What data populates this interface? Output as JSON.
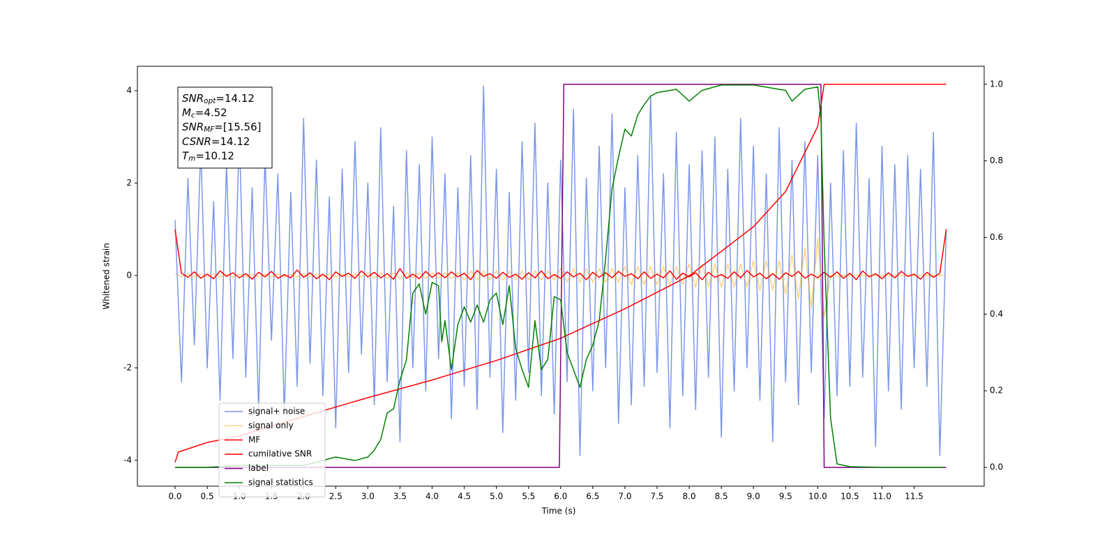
{
  "chart_data": {
    "type": "line",
    "xlabel": "Time (s)",
    "ylabel": "Whitened strain",
    "xlim": [
      -0.586,
      12.59
    ],
    "ylim": [
      -4.56,
      4.53
    ],
    "y2lim": [
      -0.049,
      1.047
    ],
    "xticks": [
      {
        "value": 0,
        "label": "0.0"
      },
      0.5,
      {
        "value": 1,
        "label": "1.0"
      },
      1.5,
      {
        "value": 2,
        "label": "2.0"
      },
      2.5,
      {
        "value": 3,
        "label": "3.0"
      },
      3.5,
      {
        "value": 4,
        "label": "4.0"
      },
      4.5,
      {
        "value": 5,
        "label": "5.0"
      },
      5.5,
      {
        "value": 6,
        "label": "6.0"
      },
      6.5,
      {
        "value": 7,
        "label": "7.0"
      },
      7.5,
      {
        "value": 8,
        "label": "8.0"
      },
      8.5,
      {
        "value": 9,
        "label": "9.0"
      },
      9.5,
      {
        "value": 10,
        "label": "10.0"
      },
      10.5,
      {
        "value": 11,
        "label": "11.0"
      },
      11.5
    ],
    "yticks": [
      -4,
      -2,
      0,
      2,
      4
    ],
    "y2ticks": [
      {
        "value": 0,
        "label": "0.0"
      },
      0.2,
      0.4,
      0.6,
      0.8,
      {
        "value": 1,
        "label": "1.0"
      }
    ],
    "grid": false,
    "legend": "lower left",
    "annotations": [
      {
        "name": "SNR",
        "subscript": "opt",
        "text": "=14.12"
      },
      {
        "name": "M",
        "subscript": "c",
        "text": "=4.52"
      },
      {
        "name": "SNR",
        "subscript": "MF",
        "text": "=[15.56]"
      },
      {
        "name": "CSNR",
        "text": "=14.12"
      },
      {
        "name": "T",
        "subscript": "m",
        "text": "=10.12"
      }
    ],
    "x": [
      0,
      0.1,
      0.2,
      0.3,
      0.4,
      0.5,
      0.6,
      0.7,
      0.8,
      0.9,
      1,
      1.1,
      1.2,
      1.3,
      1.4,
      1.5,
      1.6,
      1.7,
      1.8,
      1.9,
      2,
      2.1,
      2.2,
      2.3,
      2.4,
      2.5,
      2.6,
      2.7,
      2.8,
      2.9,
      3,
      3.1,
      3.2,
      3.3,
      3.4,
      3.5,
      3.6,
      3.7,
      3.8,
      3.9,
      4,
      4.1,
      4.2,
      4.3,
      4.4,
      4.5,
      4.6,
      4.7,
      4.8,
      4.9,
      5,
      5.1,
      5.2,
      5.3,
      5.4,
      5.5,
      5.6,
      5.7,
      5.8,
      5.9,
      6,
      6.1,
      6.2,
      6.3,
      6.4,
      6.5,
      6.6,
      6.7,
      6.8,
      6.9,
      7,
      7.1,
      7.2,
      7.3,
      7.4,
      7.5,
      7.6,
      7.7,
      7.8,
      7.9,
      8,
      8.1,
      8.2,
      8.3,
      8.4,
      8.5,
      8.6,
      8.7,
      8.8,
      8.9,
      9,
      9.1,
      9.2,
      9.3,
      9.4,
      9.5,
      9.6,
      9.7,
      9.8,
      9.9,
      10,
      10.1,
      10.2,
      10.3,
      10.4,
      10.5,
      10.6,
      10.7,
      10.8,
      10.9,
      11,
      11.1,
      11.2,
      11.3,
      11.4,
      11.5,
      11.6,
      11.7,
      11.8,
      11.9,
      12
    ],
    "series": [
      {
        "name": "signal+ noise",
        "color": "royalblue",
        "opacity": 0.7,
        "values": [
          1.2,
          -2.3,
          2.1,
          -1.5,
          2.8,
          -2.0,
          1.6,
          -2.7,
          2.4,
          -1.8,
          3.1,
          -2.2,
          1.9,
          -2.9,
          2.6,
          -1.4,
          2.2,
          -3.0,
          1.8,
          -2.4,
          3.4,
          -1.9,
          2.5,
          -2.6,
          1.7,
          -3.3,
          2.3,
          -2.1,
          2.9,
          -1.7,
          2.0,
          -2.8,
          3.2,
          -2.3,
          1.5,
          -3.6,
          2.7,
          -2.0,
          2.4,
          -2.5,
          3.0,
          -1.8,
          2.2,
          -3.1,
          1.9,
          -2.4,
          2.6,
          -2.9,
          4.1,
          -2.2,
          2.3,
          -3.4,
          1.8,
          -2.7,
          2.9,
          -2.1,
          3.3,
          -2.6,
          2.0,
          -3.0,
          2.5,
          -2.3,
          3.6,
          -3.9,
          2.1,
          -2.5,
          2.8,
          -2.0,
          3.5,
          -3.2,
          1.9,
          -2.8,
          2.6,
          -2.4,
          3.9,
          -2.1,
          2.2,
          -3.3,
          3.1,
          -2.6,
          2.4,
          -2.9,
          2.7,
          -2.2,
          3.0,
          -3.5,
          2.3,
          -2.5,
          3.4,
          -2.0,
          2.8,
          -2.7,
          2.2,
          -3.6,
          3.2,
          -2.3,
          2.5,
          -2.8,
          2.9,
          -2.1,
          2.6,
          -3.1,
          2.0,
          -2.6,
          2.7,
          -2.4,
          3.3,
          -2.2,
          2.1,
          -3.7,
          2.8,
          -2.5,
          2.4,
          -2.9,
          2.6,
          -2.0,
          2.3,
          -2.4,
          3.1,
          -3.9,
          1.0
        ]
      },
      {
        "name": "signal only",
        "color": "orange",
        "opacity": 0.5,
        "values": [
          0.03,
          -0.03,
          0.03,
          -0.03,
          0.03,
          -0.03,
          0.03,
          -0.03,
          0.03,
          -0.03,
          0.03,
          -0.03,
          0.03,
          -0.03,
          0.03,
          -0.03,
          0.03,
          -0.03,
          0.03,
          -0.03,
          0.03,
          -0.03,
          0.03,
          -0.03,
          0.03,
          -0.03,
          0.03,
          -0.03,
          0.03,
          -0.03,
          0.06,
          -0.06,
          0.06,
          -0.06,
          0.06,
          -0.06,
          0.06,
          -0.06,
          0.06,
          -0.06,
          0.06,
          -0.06,
          0.06,
          -0.06,
          0.06,
          -0.1,
          0.1,
          -0.1,
          0.1,
          -0.1,
          0.1,
          -0.1,
          0.1,
          -0.1,
          0.1,
          -0.1,
          0.1,
          -0.1,
          0.1,
          -0.1,
          0.15,
          -0.15,
          0.15,
          -0.15,
          0.15,
          -0.15,
          0.15,
          -0.15,
          0.15,
          -0.15,
          0.2,
          -0.2,
          0.2,
          -0.2,
          0.2,
          -0.2,
          0.2,
          -0.2,
          0.2,
          -0.2,
          0.25,
          -0.25,
          0.25,
          -0.25,
          0.25,
          -0.25,
          0.25,
          -0.25,
          0.25,
          -0.25,
          0.32,
          -0.32,
          0.32,
          -0.32,
          0.32,
          -0.4,
          0.45,
          -0.5,
          0.6,
          -0.7,
          0.8,
          -0.9,
          0,
          0,
          0,
          0,
          0,
          0,
          0,
          0,
          0,
          0,
          0,
          0,
          0,
          0,
          0,
          0,
          0,
          0,
          0
        ]
      },
      {
        "name": "MF",
        "color": "red",
        "opacity": 1,
        "values": [
          1.0,
          0.05,
          -0.04,
          0.08,
          -0.06,
          0.03,
          -0.07,
          0.1,
          -0.02,
          0.06,
          -0.05,
          0.04,
          -0.08,
          0.07,
          -0.03,
          0.09,
          -0.06,
          0.02,
          -0.05,
          0.12,
          -0.04,
          0.06,
          -0.07,
          0.03,
          -0.09,
          0.08,
          -0.02,
          0.05,
          -0.06,
          0.1,
          -0.03,
          0.07,
          -0.05,
          0.04,
          -0.08,
          0.15,
          -0.06,
          0.03,
          -0.07,
          0.09,
          -0.04,
          0.06,
          -0.05,
          0.08,
          -0.03,
          0.05,
          -0.09,
          0.11,
          -0.02,
          0.04,
          -0.06,
          0.07,
          -0.04,
          0.03,
          -0.08,
          0.06,
          -0.05,
          0.1,
          -0.07,
          0.02,
          -0.06,
          0.08,
          -0.03,
          0.05,
          -0.09,
          0.07,
          -0.04,
          0.06,
          -0.05,
          0.09,
          -0.02,
          0.04,
          -0.07,
          0.08,
          -0.06,
          0.03,
          -0.05,
          0.1,
          -0.08,
          0.05,
          -0.03,
          0.06,
          -0.09,
          0.07,
          -0.04,
          0.02,
          -0.06,
          0.08,
          -0.05,
          0.11,
          -0.03,
          0.05,
          -0.07,
          0.04,
          -0.08,
          0.06,
          -0.02,
          0.09,
          -0.06,
          0.03,
          -0.05,
          0.07,
          -0.04,
          0.08,
          -0.06,
          0.05,
          -0.09,
          0.1,
          -0.03,
          0.04,
          -0.07,
          0.06,
          -0.05,
          0.09,
          -0.02,
          0.03,
          -0.08,
          0.07,
          -0.04,
          0.05,
          1.0
        ]
      },
      {
        "name": "cumilative SNR",
        "color": "red",
        "opacity": 1,
        "axis": "y2",
        "x": [
          0,
          0.05,
          0.5,
          1,
          2,
          3,
          4,
          5,
          6,
          7,
          8,
          9,
          9.5,
          10,
          10.1,
          12
        ],
        "values": [
          0.013,
          0.04,
          0.065,
          0.082,
          0.133,
          0.182,
          0.228,
          0.279,
          0.337,
          0.414,
          0.5,
          0.628,
          0.72,
          0.89,
          1.0,
          1.0
        ]
      },
      {
        "name": "label",
        "color": "purple",
        "opacity": 1,
        "axis": "y2",
        "x": [
          0,
          5.98,
          6.05,
          10.05,
          10.1,
          12
        ],
        "values": [
          0,
          0,
          1,
          1,
          0,
          0
        ]
      },
      {
        "name": "signal statistics",
        "color": "green",
        "opacity": 1,
        "axis": "y2",
        "x": [
          0,
          0.5,
          1,
          2,
          2.5,
          2.8,
          3,
          3.1,
          3.2,
          3.3,
          3.4,
          3.5,
          3.6,
          3.7,
          3.8,
          3.9,
          4,
          4.1,
          4.15,
          4.2,
          4.3,
          4.4,
          4.5,
          4.6,
          4.7,
          4.8,
          4.9,
          5,
          5.1,
          5.2,
          5.3,
          5.4,
          5.5,
          5.6,
          5.7,
          5.8,
          5.9,
          6,
          6.1,
          6.2,
          6.3,
          6.4,
          6.5,
          6.6,
          6.7,
          6.8,
          6.9,
          7,
          7.1,
          7.2,
          7.3,
          7.4,
          7.5,
          7.7,
          7.8,
          8,
          8.2,
          8.5,
          9,
          9.5,
          9.6,
          9.8,
          10,
          10.05,
          10.1,
          10.2,
          10.3,
          10.5,
          11,
          11.95
        ],
        "values": [
          0,
          0,
          0.005,
          0.005,
          0.027,
          0.018,
          0.027,
          0.045,
          0.073,
          0.142,
          0.153,
          0.228,
          0.28,
          0.455,
          0.479,
          0.4,
          0.483,
          0.474,
          0.328,
          0.383,
          0.255,
          0.373,
          0.419,
          0.379,
          0.424,
          0.379,
          0.437,
          0.455,
          0.373,
          0.474,
          0.31,
          0.255,
          0.209,
          0.383,
          0.255,
          0.282,
          0.446,
          0.437,
          0.3,
          0.255,
          0.209,
          0.282,
          0.319,
          0.383,
          0.546,
          0.728,
          0.81,
          0.883,
          0.865,
          0.92,
          0.947,
          0.969,
          0.978,
          0.984,
          0.987,
          0.956,
          0.984,
          0.998,
          0.998,
          0.984,
          0.956,
          0.987,
          0.993,
          0.91,
          0.583,
          0.128,
          0.009,
          0.002,
          0,
          0
        ]
      }
    ]
  }
}
